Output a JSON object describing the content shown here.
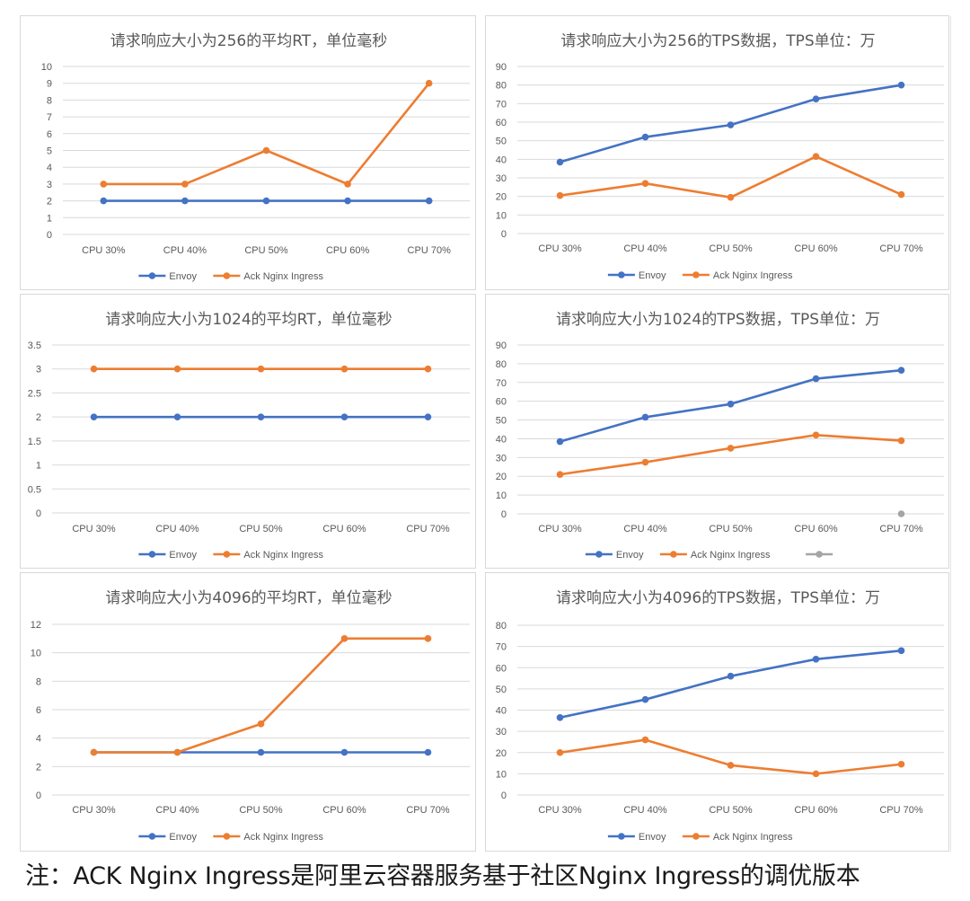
{
  "colors": {
    "envoy": "#4472C4",
    "nginx": "#ED7D31",
    "extra": "#A5A5A5",
    "grid": "#d9d9d9",
    "text": "#595959"
  },
  "chart_data": [
    {
      "type": "line",
      "title": "请求响应大小为256的平均RT，单位毫秒",
      "categories": [
        "CPU 30%",
        "CPU 40%",
        "CPU 50%",
        "CPU 60%",
        "CPU 70%"
      ],
      "ylim": [
        0,
        10
      ],
      "yticks": [
        "0",
        "1",
        "2",
        "3",
        "4",
        "5",
        "6",
        "7",
        "8",
        "9",
        "10"
      ],
      "series": [
        {
          "name": "Envoy",
          "color": "#4472C4",
          "values": [
            2,
            2,
            2,
            2,
            2
          ]
        },
        {
          "name": "Ack Nginx Ingress",
          "color": "#ED7D31",
          "values": [
            3,
            3,
            5,
            3,
            9
          ]
        }
      ],
      "legend": "bottom"
    },
    {
      "type": "line",
      "title": "请求响应大小为256的TPS数据，TPS单位：万",
      "categories": [
        "CPU 30%",
        "CPU 40%",
        "CPU 50%",
        "CPU 60%",
        "CPU 70%"
      ],
      "ylim": [
        0,
        90
      ],
      "yticks": [
        "0",
        "10",
        "20",
        "30",
        "40",
        "50",
        "60",
        "70",
        "80",
        "90"
      ],
      "series": [
        {
          "name": "Envoy",
          "color": "#4472C4",
          "values": [
            38.5,
            52,
            58.5,
            72.5,
            80
          ]
        },
        {
          "name": "Ack Nginx Ingress",
          "color": "#ED7D31",
          "values": [
            20.5,
            27,
            19.5,
            41.5,
            21
          ]
        }
      ],
      "legend": "bottom"
    },
    {
      "type": "line",
      "title": "请求响应大小为1024的平均RT，单位毫秒",
      "categories": [
        "CPU 30%",
        "CPU 40%",
        "CPU 50%",
        "CPU 60%",
        "CPU 70%"
      ],
      "ylim": [
        0,
        3.5
      ],
      "yticks": [
        "0",
        "0.5",
        "1",
        "1.5",
        "2",
        "2.5",
        "3",
        "3.5"
      ],
      "series": [
        {
          "name": "Envoy",
          "color": "#4472C4",
          "values": [
            2,
            2,
            2,
            2,
            2
          ]
        },
        {
          "name": "Ack Nginx Ingress",
          "color": "#ED7D31",
          "values": [
            3,
            3,
            3,
            3,
            3
          ]
        }
      ],
      "legend": "bottom"
    },
    {
      "type": "line",
      "title": "请求响应大小为1024的TPS数据，TPS单位：万",
      "categories": [
        "CPU 30%",
        "CPU 40%",
        "CPU 50%",
        "CPU 60%",
        "CPU 70%"
      ],
      "ylim": [
        0,
        90
      ],
      "yticks": [
        "0",
        "10",
        "20",
        "30",
        "40",
        "50",
        "60",
        "70",
        "80",
        "90"
      ],
      "series": [
        {
          "name": "Envoy",
          "color": "#4472C4",
          "values": [
            38.5,
            51.5,
            58.5,
            72,
            76.5
          ]
        },
        {
          "name": "Ack Nginx Ingress",
          "color": "#ED7D31",
          "values": [
            21,
            27.5,
            35,
            42,
            39
          ]
        },
        {
          "name": "",
          "color": "#A5A5A5",
          "values": [
            null,
            null,
            null,
            null,
            0
          ]
        }
      ],
      "legend": "bottom"
    },
    {
      "type": "line",
      "title": "请求响应大小为4096的平均RT，单位毫秒",
      "categories": [
        "CPU 30%",
        "CPU 40%",
        "CPU 50%",
        "CPU 60%",
        "CPU 70%"
      ],
      "ylim": [
        0,
        12
      ],
      "yticks": [
        "0",
        "2",
        "4",
        "6",
        "8",
        "10",
        "12"
      ],
      "series": [
        {
          "name": "Envoy",
          "color": "#4472C4",
          "values": [
            3,
            3,
            3,
            3,
            3
          ]
        },
        {
          "name": "Ack Nginx Ingress",
          "color": "#ED7D31",
          "values": [
            3,
            3,
            5,
            11,
            11
          ]
        }
      ],
      "legend": "bottom"
    },
    {
      "type": "line",
      "title": "请求响应大小为4096的TPS数据，TPS单位：万",
      "categories": [
        "CPU 30%",
        "CPU 40%",
        "CPU 50%",
        "CPU 60%",
        "CPU 70%"
      ],
      "ylim": [
        0,
        80
      ],
      "yticks": [
        "0",
        "10",
        "20",
        "30",
        "40",
        "50",
        "60",
        "70",
        "80"
      ],
      "series": [
        {
          "name": "Envoy",
          "color": "#4472C4",
          "values": [
            36.5,
            45,
            56,
            64,
            68
          ]
        },
        {
          "name": "Ack Nginx Ingress",
          "color": "#ED7D31",
          "values": [
            20,
            26,
            14,
            10,
            14.5
          ]
        }
      ],
      "legend": "bottom"
    }
  ],
  "footnote": "注：ACK Nginx Ingress是阿里云容器服务基于社区Nginx Ingress的调优版本"
}
